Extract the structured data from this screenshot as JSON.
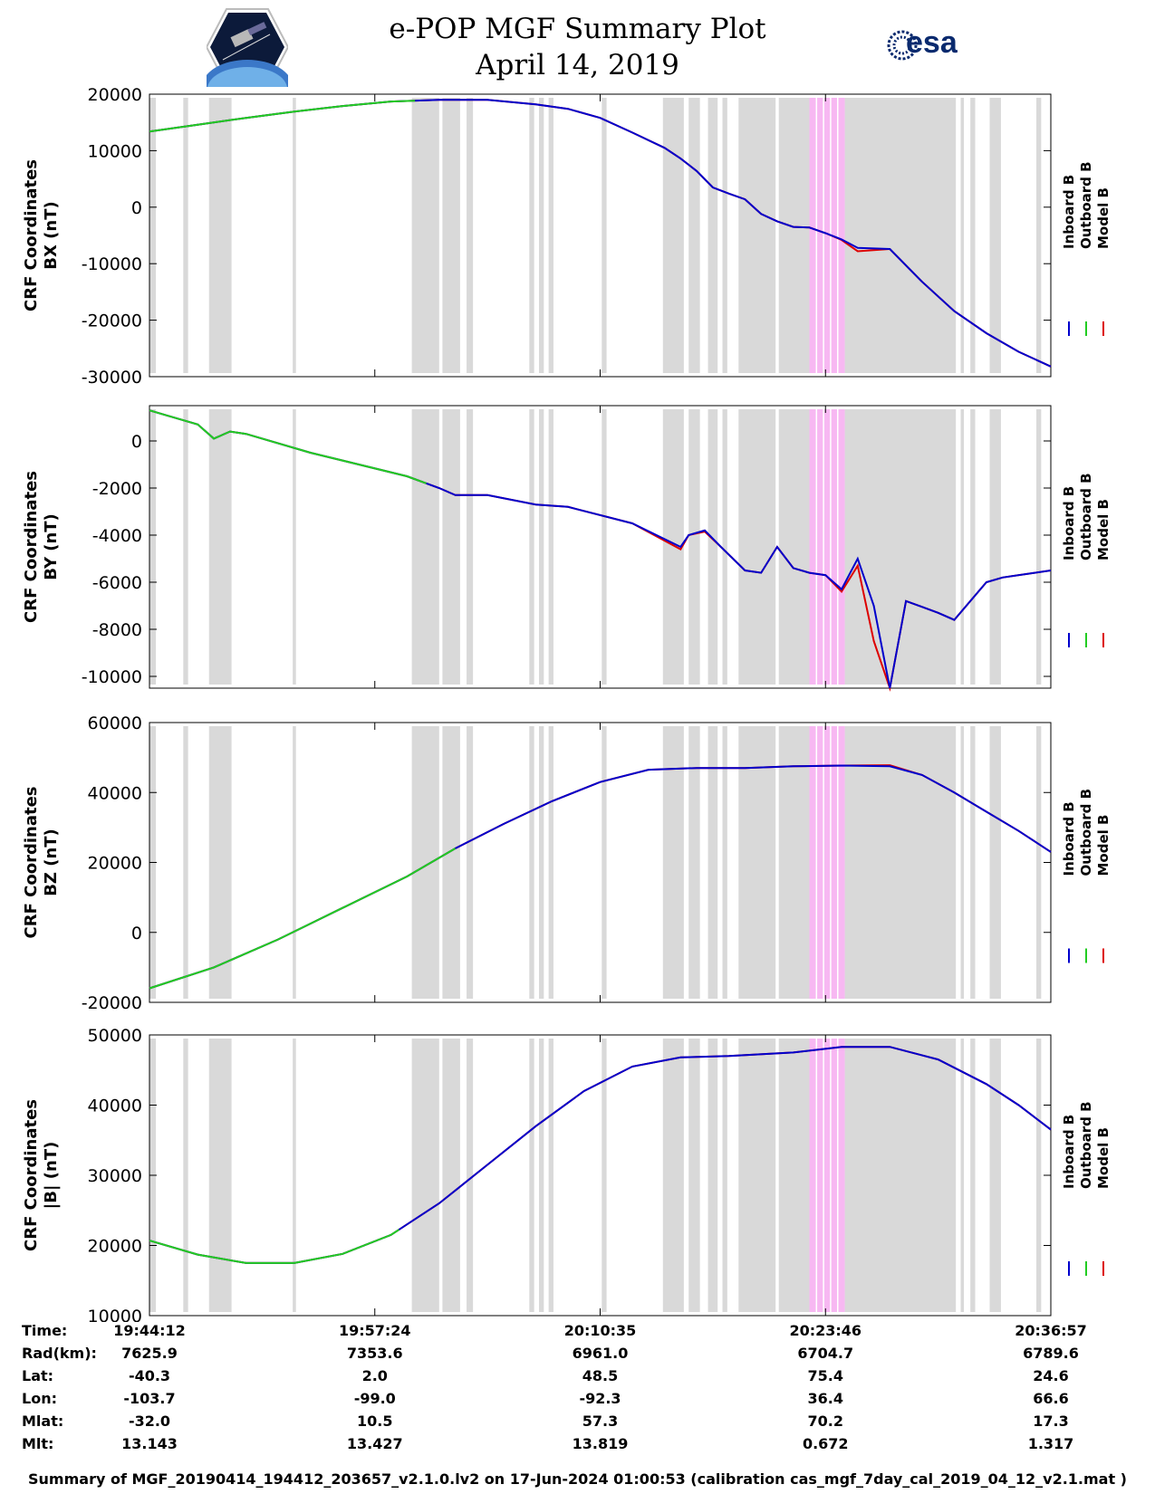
{
  "header": {
    "title": "e-POP MGF Summary Plot",
    "date": "April 14, 2019",
    "left_logo": "cassiope-mission-logo",
    "right_logo": "esa-logo",
    "esa_text": "esa"
  },
  "colors": {
    "inboard": "#0000cc",
    "outboard": "#22cc22",
    "model": "#dd0000",
    "gap_shading": "#d9d9d9",
    "highlight_shading": "#f7b8f2"
  },
  "chart_data": [
    {
      "type": "line",
      "id": "bx",
      "ylabel_line1": "CRF Coordinates",
      "ylabel_line2": "BX (nT)",
      "ylim": [
        -30000,
        20000
      ],
      "yticks": [
        20000,
        10000,
        0,
        -10000,
        -20000,
        -30000
      ],
      "legend": [
        "Inboard B",
        "Outboard B",
        "Model B"
      ],
      "x_minutes": [
        0,
        3,
        6,
        9,
        12,
        15,
        18,
        21,
        24,
        26,
        28,
        30,
        32,
        33,
        34,
        35,
        36,
        37,
        38,
        39,
        40,
        41,
        42,
        43,
        44,
        46,
        48,
        50,
        52,
        54,
        56
      ],
      "series": [
        {
          "name": "Inboard B",
          "values": [
            13400,
            14600,
            15800,
            16900,
            17900,
            18700,
            19000,
            19000,
            18200,
            17400,
            15800,
            13200,
            10500,
            8600,
            6400,
            3500,
            2400,
            1400,
            -1200,
            -2500,
            -3500,
            -3600,
            -4600,
            -5700,
            -7200,
            -7400,
            -13200,
            -18400,
            -22300,
            -25600,
            -28200
          ]
        },
        {
          "name": "Model B",
          "values": [
            13400,
            14600,
            15800,
            16900,
            17900,
            18700,
            19000,
            19000,
            18200,
            17400,
            15800,
            13200,
            10500,
            8600,
            6400,
            3500,
            2400,
            1400,
            -1200,
            -2500,
            -3500,
            -3600,
            -4600,
            -5800,
            -7800,
            -7400,
            -13200,
            -18400,
            -22300,
            -25600,
            -28200
          ]
        },
        {
          "name": "Outboard B",
          "x_end_minutes": 16.5,
          "values": [
            13400,
            14600,
            15800,
            16900,
            17900,
            18700,
            19000
          ]
        }
      ]
    },
    {
      "type": "line",
      "id": "by",
      "ylabel_line1": "CRF Coordinates",
      "ylabel_line2": "BY (nT)",
      "ylim": [
        -10500,
        1500
      ],
      "yticks": [
        0,
        -2000,
        -4000,
        -6000,
        -8000,
        -10000
      ],
      "legend": [
        "Inboard B",
        "Outboard B",
        "Model B"
      ],
      "x_minutes": [
        0,
        1,
        2,
        3,
        4,
        5,
        6,
        10,
        16,
        18,
        19,
        21,
        24,
        26,
        30,
        33,
        33.5,
        34.5,
        35.5,
        37,
        38,
        39,
        40,
        41,
        42,
        43,
        44,
        45,
        46,
        47,
        49,
        50,
        52,
        53,
        55,
        56
      ],
      "series": [
        {
          "name": "Inboard B",
          "values": [
            1300,
            1100,
            900,
            700,
            100,
            400,
            300,
            -500,
            -1500,
            -2000,
            -2300,
            -2300,
            -2700,
            -2800,
            -3500,
            -4500,
            -4000,
            -3800,
            -4500,
            -5500,
            -5600,
            -4500,
            -5400,
            -5600,
            -5700,
            -6300,
            -5000,
            -7000,
            -10500,
            -6800,
            -7300,
            -7600,
            -6000,
            -5800,
            -5600,
            -5500
          ]
        },
        {
          "name": "Model B",
          "values": [
            1300,
            1100,
            900,
            700,
            100,
            400,
            300,
            -500,
            -1500,
            -2000,
            -2300,
            -2300,
            -2700,
            -2800,
            -3500,
            -4600,
            -4000,
            -3850,
            -4500,
            -5500,
            -5600,
            -4500,
            -5400,
            -5600,
            -5700,
            -6400,
            -5300,
            -8500,
            -10500,
            -6800,
            -7300,
            -7600,
            -6000,
            -5800,
            -5600,
            -5500
          ]
        },
        {
          "name": "Outboard B",
          "x_end_minutes": 17.2,
          "values": [
            1300,
            1100,
            900,
            700,
            100,
            400,
            300,
            -500,
            -1500
          ]
        }
      ]
    },
    {
      "type": "line",
      "id": "bz",
      "ylabel_line1": "CRF Coordinates",
      "ylabel_line2": "BZ (nT)",
      "ylim": [
        -20000,
        60000
      ],
      "yticks": [
        60000,
        40000,
        20000,
        0,
        -20000
      ],
      "legend": [
        "Inboard B",
        "Outboard B",
        "Model B"
      ],
      "x_minutes": [
        0,
        4,
        8,
        12,
        16,
        19,
        22,
        25,
        28,
        31,
        34,
        37,
        40,
        43,
        46,
        48,
        50,
        52,
        54,
        56
      ],
      "series": [
        {
          "name": "Inboard B",
          "values": [
            -16000,
            -10000,
            -2000,
            7000,
            16000,
            24000,
            31000,
            37500,
            43000,
            46500,
            47000,
            47000,
            47500,
            47700,
            47500,
            45000,
            40000,
            34500,
            29000,
            23000
          ]
        },
        {
          "name": "Model B",
          "values": [
            -16000,
            -10000,
            -2000,
            7000,
            16000,
            24000,
            31000,
            37500,
            43000,
            46500,
            47000,
            47000,
            47500,
            47700,
            47800,
            45000,
            40000,
            34500,
            29000,
            23000
          ]
        },
        {
          "name": "Outboard B",
          "x_end_minutes": 19,
          "values": [
            -16000,
            -10000,
            -2000,
            7000,
            16000,
            24000
          ]
        }
      ]
    },
    {
      "type": "line",
      "id": "bmag",
      "ylabel_line1": "CRF Coordinates",
      "ylabel_line2": "|B| (nT)",
      "ylim": [
        10000,
        50000
      ],
      "yticks": [
        50000,
        40000,
        30000,
        20000,
        10000
      ],
      "legend": [
        "Inboard B",
        "Outboard B",
        "Model B"
      ],
      "x_minutes": [
        0,
        3,
        6,
        9,
        12,
        15,
        18,
        21,
        24,
        27,
        30,
        33,
        36,
        40,
        43,
        46,
        49,
        52,
        54,
        56
      ],
      "series": [
        {
          "name": "Inboard B",
          "values": [
            20700,
            18700,
            17500,
            17500,
            18800,
            21500,
            26000,
            31500,
            37000,
            42000,
            45500,
            46800,
            47000,
            47500,
            48300,
            48300,
            46500,
            43000,
            40000,
            36500
          ]
        },
        {
          "name": "Model B",
          "values": [
            20700,
            18700,
            17500,
            17500,
            18800,
            21500,
            26000,
            31500,
            37000,
            42000,
            45500,
            46800,
            47000,
            47500,
            48300,
            48300,
            46500,
            43000,
            40000,
            36500
          ]
        },
        {
          "name": "Outboard B",
          "x_end_minutes": 15.5,
          "values": [
            20700,
            18700,
            17500,
            17500,
            18800,
            21500
          ]
        }
      ]
    }
  ],
  "x_axis": {
    "range_minutes": [
      0,
      56
    ],
    "tick_minutes": [
      0,
      14,
      28,
      42,
      56
    ]
  },
  "data_gaps_minutes": [
    [
      0,
      0.4
    ],
    [
      2.1,
      2.4
    ],
    [
      3.7,
      5.1
    ],
    [
      8.9,
      9.1
    ],
    [
      16.3,
      18.0
    ],
    [
      18.2,
      19.3
    ],
    [
      19.7,
      20.1
    ],
    [
      23.6,
      23.9
    ],
    [
      24.2,
      24.5
    ],
    [
      24.8,
      25.1
    ],
    [
      28.1,
      28.4
    ],
    [
      31.9,
      33.2
    ],
    [
      33.5,
      34.2
    ],
    [
      34.7,
      35.3
    ],
    [
      35.6,
      35.9
    ],
    [
      36.6,
      38.9
    ],
    [
      39.1,
      41.0
    ],
    [
      43.2,
      50.1
    ],
    [
      50.4,
      50.6
    ],
    [
      51.0,
      51.3
    ],
    [
      52.2,
      52.9
    ],
    [
      55.1,
      55.4
    ]
  ],
  "highlight_minutes": [
    [
      41.0,
      43.2
    ]
  ],
  "info_table": {
    "labels": [
      "Time:",
      "Rad(km):",
      "Lat:",
      "Lon:",
      "Mlat:",
      "Mlt:"
    ],
    "columns": [
      [
        "19:44:12",
        "7625.9",
        "-40.3",
        "-103.7",
        "-32.0",
        "13.143"
      ],
      [
        "19:57:24",
        "7353.6",
        "2.0",
        "-99.0",
        "10.5",
        "13.427"
      ],
      [
        "20:10:35",
        "6961.0",
        "48.5",
        "-92.3",
        "57.3",
        "13.819"
      ],
      [
        "20:23:46",
        "6704.7",
        "75.4",
        "36.4",
        "70.2",
        "0.672"
      ],
      [
        "20:36:57",
        "6789.6",
        "24.6",
        "66.6",
        "17.3",
        "1.317"
      ]
    ]
  },
  "footer": "Summary of MGF_20190414_194412_203657_v2.1.0.lv2 on 17-Jun-2024 01:00:53 (calibration cas_mgf_7day_cal_2019_04_12_v2.1.mat )"
}
